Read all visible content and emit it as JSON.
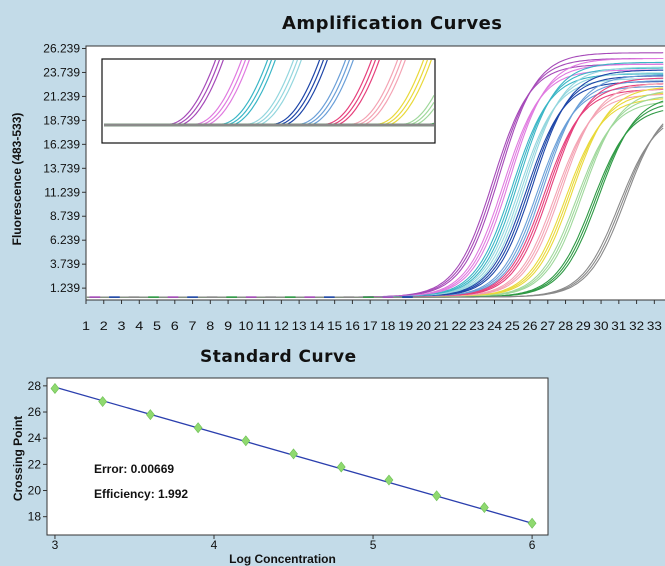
{
  "chart_data": [
    {
      "type": "line",
      "title": "Amplification Curves",
      "ylabel": "Fluorescence (483-533)",
      "xlabel": "",
      "y_ticks": [
        "26.239",
        "23.739",
        "21.239",
        "18.739",
        "16.239",
        "13.739",
        "11.239",
        "8.739",
        "6.239",
        "3.739",
        "1.239"
      ],
      "x_ticks": [
        "1",
        "2",
        "3",
        "4",
        "5",
        "6",
        "7",
        "8",
        "9",
        "10",
        "11",
        "12",
        "13",
        "14",
        "15",
        "16",
        "17",
        "18",
        "19",
        "20",
        "21",
        "22",
        "23",
        "24",
        "25",
        "26",
        "27",
        "28",
        "29",
        "30",
        "31",
        "32",
        "33"
      ],
      "ylim": [
        0,
        26.5
      ],
      "xlim": [
        1,
        33.6
      ],
      "series_colors": [
        "#a64ab9",
        "#e07ae0",
        "#3ab6c6",
        "#93d6de",
        "#1e46a8",
        "#6a9fd8",
        "#e6407c",
        "#f4a3b3",
        "#e9d93a",
        "#9fd89b",
        "#2f9a45",
        "#8a8a8a"
      ],
      "series_midpoints": [
        24.1,
        24.7,
        25.2,
        25.6,
        26.0,
        26.6,
        27.0,
        27.6,
        28.2,
        28.8,
        29.7,
        31.2
      ],
      "series_plateaus": [
        25.2,
        24.6,
        24.2,
        23.7,
        23.4,
        22.9,
        22.6,
        22.1,
        21.7,
        21.4,
        20.8,
        20.2
      ],
      "baseline": 0.3,
      "inset": "zoomed overlay of onset region"
    },
    {
      "type": "scatter",
      "title": "Standard Curve",
      "xlabel": "Log Concentration",
      "ylabel": "Crossing Point",
      "xlim": [
        2.95,
        6.1
      ],
      "ylim": [
        16.6,
        28.6
      ],
      "x_ticks": [
        "3",
        "4",
        "5",
        "6"
      ],
      "y_ticks": [
        "28",
        "26",
        "24",
        "22",
        "20",
        "18"
      ],
      "points": [
        {
          "x": 3.0,
          "y": 27.8
        },
        {
          "x": 3.3,
          "y": 26.8
        },
        {
          "x": 3.6,
          "y": 25.8
        },
        {
          "x": 3.9,
          "y": 24.8
        },
        {
          "x": 4.2,
          "y": 23.8
        },
        {
          "x": 4.5,
          "y": 22.8
        },
        {
          "x": 4.8,
          "y": 21.8
        },
        {
          "x": 5.1,
          "y": 20.8
        },
        {
          "x": 5.4,
          "y": 19.6
        },
        {
          "x": 5.7,
          "y": 18.7
        },
        {
          "x": 6.0,
          "y": 17.5
        }
      ],
      "fit_line": {
        "x": [
          3.0,
          6.0
        ],
        "y": [
          27.9,
          17.5
        ]
      },
      "annotations": [
        "Error: 0.00669",
        "Efficiency: 1.992"
      ],
      "point_color": "#8fd96f",
      "line_color": "#2b3fae"
    }
  ]
}
